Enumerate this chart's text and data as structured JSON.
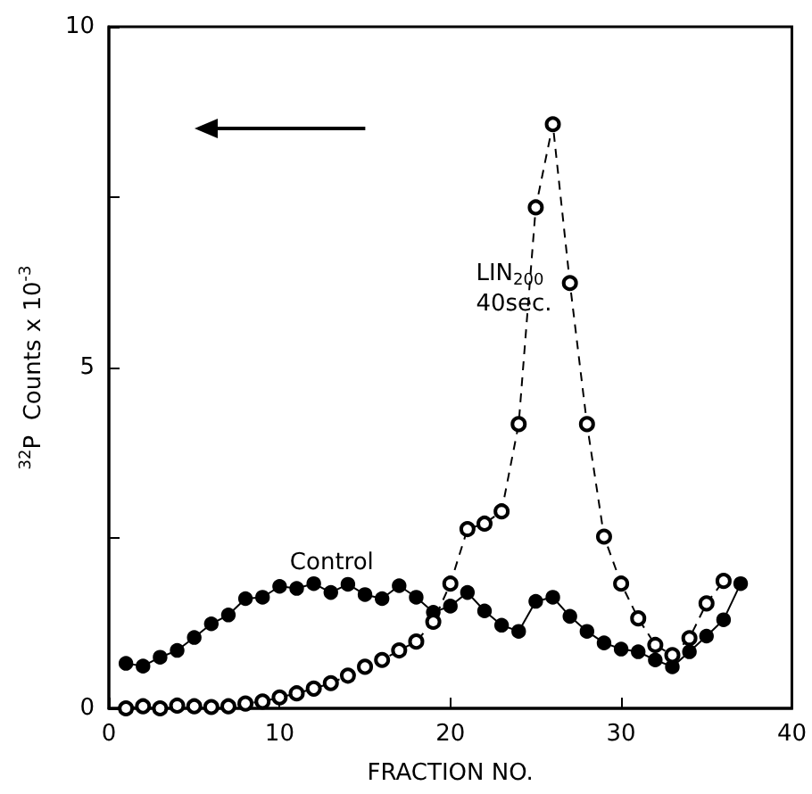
{
  "chart_data": {
    "type": "line",
    "xlabel": "FRACTION NO.",
    "ylabel": "$^{32}$P  Counts x 10$^{-3}$",
    "xlim": [
      0,
      40
    ],
    "xticks": [
      0,
      10,
      20,
      30,
      40
    ],
    "ylim": [
      0,
      10
    ],
    "yticks": [
      0,
      {
        "value": 2.5,
        "label": null
      },
      5,
      {
        "value": 7.5,
        "label": null
      },
      10
    ],
    "grid": false,
    "legend": false,
    "marker": "circle",
    "series": [
      {
        "name": "Control",
        "color": "#000000",
        "line_style": "solid",
        "x": [
          1,
          2,
          3,
          4,
          5,
          6,
          7,
          8,
          9,
          10,
          11,
          12,
          13,
          14,
          15,
          16,
          17,
          18,
          19,
          20,
          21,
          22,
          23,
          24,
          25,
          26,
          27,
          28,
          29,
          30,
          31,
          32,
          33,
          34,
          35,
          36,
          37
        ],
        "values": [
          0.66,
          0.62,
          0.75,
          0.85,
          1.04,
          1.24,
          1.37,
          1.61,
          1.63,
          1.79,
          1.76,
          1.83,
          1.7,
          1.82,
          1.67,
          1.61,
          1.8,
          1.63,
          1.41,
          1.5,
          1.7,
          1.43,
          1.22,
          1.13,
          1.57,
          1.63,
          1.35,
          1.13,
          0.96,
          0.87,
          0.83,
          0.71,
          0.61,
          0.83,
          1.06,
          1.3,
          1.83
        ]
      },
      {
        "name": "LIN$_{200}$\n40sec.",
        "color": "#000000",
        "line_style": "dashed",
        "x": [
          1,
          2,
          3,
          4,
          5,
          6,
          7,
          8,
          9,
          10,
          11,
          12,
          13,
          14,
          15,
          16,
          17,
          18,
          19,
          20,
          21,
          22,
          23,
          24,
          25,
          26,
          27,
          28,
          29,
          30,
          31,
          32,
          33,
          34,
          35,
          36
        ],
        "values": [
          0.0,
          0.03,
          0.0,
          0.04,
          0.03,
          0.02,
          0.03,
          0.07,
          0.1,
          0.16,
          0.22,
          0.29,
          0.37,
          0.48,
          0.61,
          0.71,
          0.85,
          0.98,
          1.27,
          1.83,
          2.63,
          2.71,
          2.89,
          4.17,
          7.35,
          8.57,
          6.24,
          4.17,
          2.52,
          1.83,
          1.32,
          0.93,
          0.78,
          1.03,
          1.54,
          1.87
        ]
      }
    ]
  }
}
